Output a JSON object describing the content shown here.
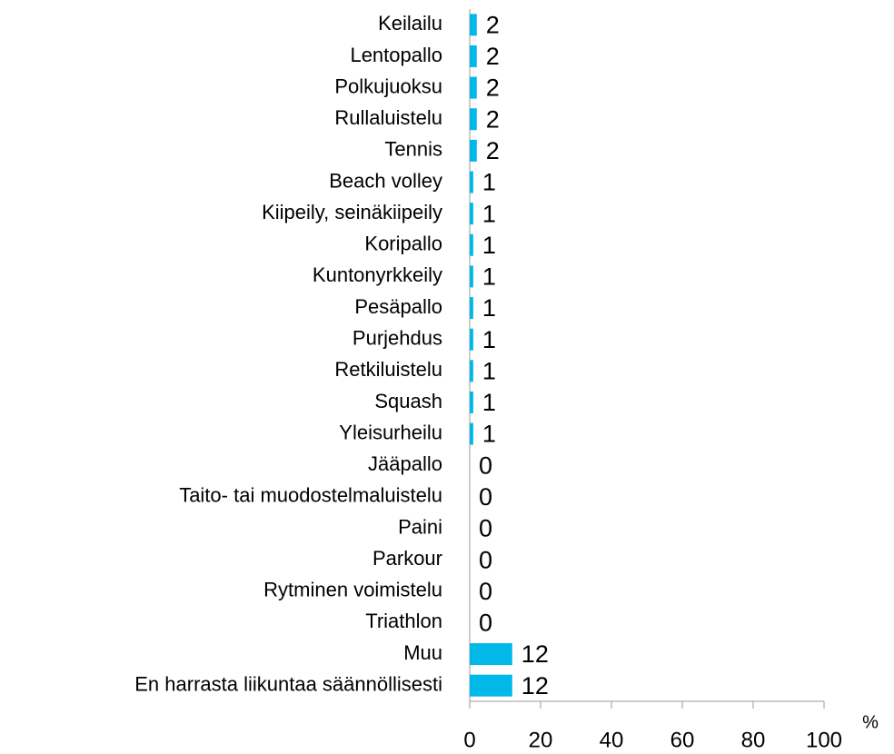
{
  "chart_data": {
    "type": "bar",
    "orientation": "horizontal",
    "categories": [
      "Keilailu",
      "Lentopallo",
      "Polkujuoksu",
      "Rullaluistelu",
      "Tennis",
      "Beach volley",
      "Kiipeily, seinäkiipeily",
      "Koripallo",
      "Kuntonyrkkeily",
      "Pesäpallo",
      "Purjehdus",
      "Retkiluistelu",
      "Squash",
      "Yleisurheilu",
      "Jääpallo",
      "Taito- tai muodostelmaluistelu",
      "Paini",
      "Parkour",
      "Rytminen voimistelu",
      "Triathlon",
      "Muu",
      "En harrasta liikuntaa säännöllisesti"
    ],
    "values": [
      2,
      2,
      2,
      2,
      2,
      1,
      1,
      1,
      1,
      1,
      1,
      1,
      1,
      1,
      0,
      0,
      0,
      0,
      0,
      0,
      12,
      12
    ],
    "color": "#00b9e8",
    "xlim": [
      0,
      100
    ],
    "xticks": [
      0,
      20,
      40,
      60,
      80,
      100
    ],
    "x_label": "%"
  }
}
